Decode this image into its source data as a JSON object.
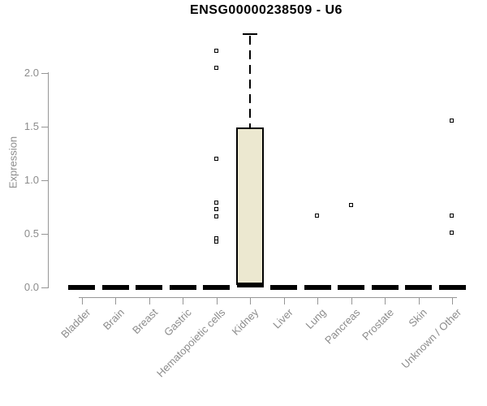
{
  "chart_data": {
    "type": "boxplot",
    "title": "ENSG00000238509 - U6",
    "ylabel": "Expression",
    "xlabel": "",
    "ylim": [
      0,
      2.4
    ],
    "grid": false,
    "legend": "none",
    "yticks": [
      {
        "value": 0.0,
        "label": "0.0"
      },
      {
        "value": 0.5,
        "label": "0.5"
      },
      {
        "value": 1.0,
        "label": "1.0"
      },
      {
        "value": 1.5,
        "label": "1.5"
      },
      {
        "value": 2.0,
        "label": "2.0"
      }
    ],
    "categories": [
      "Bladder",
      "Brain",
      "Breast",
      "Gastric",
      "Hematopoietic cells",
      "Kidney",
      "Liver",
      "Lung",
      "Pancreas",
      "Prostate",
      "Skin",
      "Unknown / Other"
    ],
    "boxes": [
      {
        "category": "Bladder",
        "q1": 0,
        "median": 0,
        "q3": 0,
        "whisker_low": 0,
        "whisker_high": 0,
        "outliers": []
      },
      {
        "category": "Brain",
        "q1": 0,
        "median": 0,
        "q3": 0,
        "whisker_low": 0,
        "whisker_high": 0,
        "outliers": []
      },
      {
        "category": "Breast",
        "q1": 0,
        "median": 0,
        "q3": 0,
        "whisker_low": 0,
        "whisker_high": 0,
        "outliers": []
      },
      {
        "category": "Gastric",
        "q1": 0,
        "median": 0,
        "q3": 0,
        "whisker_low": 0,
        "whisker_high": 0,
        "outliers": []
      },
      {
        "category": "Hematopoietic cells",
        "q1": 0,
        "median": 0,
        "q3": 0,
        "whisker_low": 0,
        "whisker_high": 0,
        "outliers": [
          2.21,
          2.05,
          1.2,
          0.79,
          0.73,
          0.66,
          0.46,
          0.43
        ]
      },
      {
        "category": "Kidney",
        "q1": 0.02,
        "median": 0.02,
        "q3": 1.49,
        "whisker_low": 0.02,
        "whisker_high": 2.36,
        "outliers": []
      },
      {
        "category": "Liver",
        "q1": 0,
        "median": 0,
        "q3": 0,
        "whisker_low": 0,
        "whisker_high": 0,
        "outliers": []
      },
      {
        "category": "Lung",
        "q1": 0,
        "median": 0,
        "q3": 0,
        "whisker_low": 0,
        "whisker_high": 0,
        "outliers": [
          0.67
        ]
      },
      {
        "category": "Pancreas",
        "q1": 0,
        "median": 0,
        "q3": 0,
        "whisker_low": 0,
        "whisker_high": 0,
        "outliers": [
          0.77
        ]
      },
      {
        "category": "Prostate",
        "q1": 0,
        "median": 0,
        "q3": 0,
        "whisker_low": 0,
        "whisker_high": 0,
        "outliers": []
      },
      {
        "category": "Skin",
        "q1": 0,
        "median": 0,
        "q3": 0,
        "whisker_low": 0,
        "whisker_high": 0,
        "outliers": []
      },
      {
        "category": "Unknown / Other",
        "q1": 0,
        "median": 0,
        "q3": 0,
        "whisker_low": 0,
        "whisker_high": 0,
        "outliers": [
          1.56,
          0.67,
          0.51
        ]
      }
    ],
    "colors": {
      "background": "#ffffff",
      "box_fill": "#ece8d0",
      "box_border": "#000000",
      "median": "#000000",
      "whisker": "#000000",
      "outlier_border": "#000000",
      "axis": "#969696",
      "label_text": "#8c8c8c",
      "title_text": "#000000"
    }
  }
}
